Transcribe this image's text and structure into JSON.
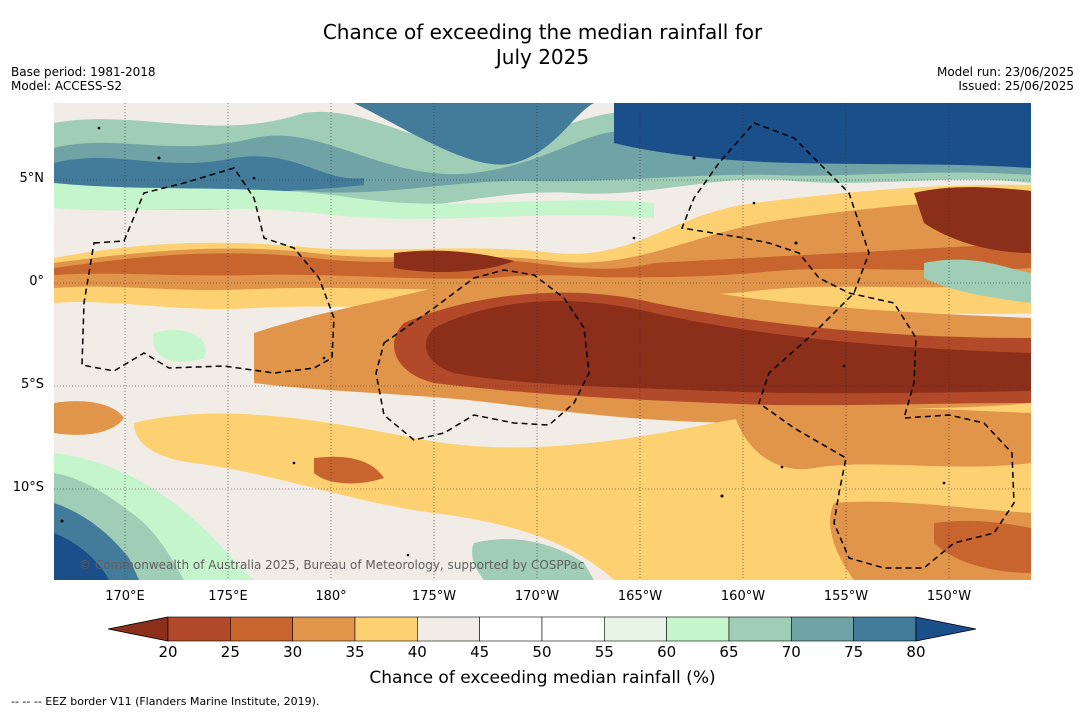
{
  "title_line1": "Chance of exceeding the median rainfall for",
  "title_line2": "July 2025",
  "meta": {
    "base_period": "Base period: 1981-2018",
    "model": "Model: ACCESS-S2",
    "model_run": "Model run: 23/06/2025",
    "issued": "Issued: 25/06/2025"
  },
  "lat_labels": [
    "5°N",
    "0°",
    "5°S",
    "10°S"
  ],
  "lon_labels": [
    "170°E",
    "175°E",
    "180°",
    "175°W",
    "170°W",
    "165°W",
    "160°W",
    "155°W",
    "150°W"
  ],
  "copyright": "© Commonwealth of Australia 2025, Bureau of Meteorology, supported by COSPPac",
  "colorbar": {
    "ticks": [
      "20",
      "25",
      "30",
      "35",
      "40",
      "45",
      "50",
      "55",
      "60",
      "65",
      "70",
      "75",
      "80"
    ],
    "colors": [
      "#8b2e1a",
      "#b24a2a",
      "#c8652f",
      "#e0954a",
      "#fdd072",
      "#f1ede6",
      "#ffffff",
      "#ffffff",
      "#e8f5e6",
      "#c4f5cb",
      "#9fcdb5",
      "#6fa3a6",
      "#437b9b",
      "#1b4f8a"
    ],
    "label": "Chance of exceeding median rainfall (%)"
  },
  "footnote": "-- -- -- EEZ border V11 (Flanders Marine Institute, 2019)."
}
